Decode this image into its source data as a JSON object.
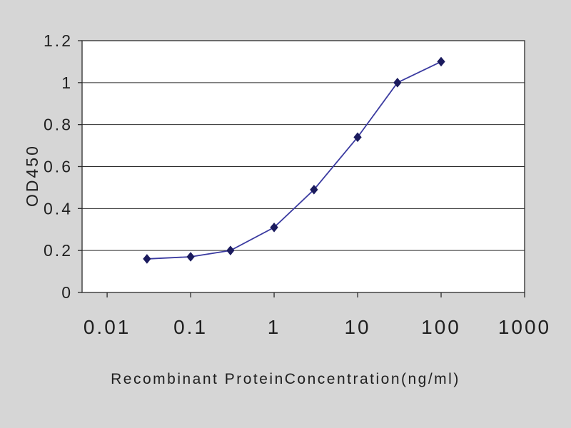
{
  "chart_data": {
    "type": "line",
    "title": "",
    "xlabel": "Recombinant ProteinConcentration(ng/ml)",
    "ylabel": "OD450",
    "x_scale": "log",
    "x": [
      0.03,
      0.1,
      0.3,
      1,
      3,
      10,
      30,
      100
    ],
    "y": [
      0.16,
      0.17,
      0.2,
      0.31,
      0.49,
      0.74,
      1.0,
      1.1
    ],
    "x_ticks": [
      0.01,
      0.1,
      1,
      10,
      100,
      1000
    ],
    "x_tick_labels": [
      "0.01",
      "0.1",
      "1",
      "10",
      "100",
      "1000"
    ],
    "y_ticks": [
      0,
      0.2,
      0.4,
      0.6,
      0.8,
      1,
      1.2
    ],
    "y_tick_labels": [
      "0",
      "0.2",
      "0.4",
      "0.6",
      "0.8",
      "1",
      "1.2"
    ],
    "xlim_log10": [
      -2.3,
      3.0
    ],
    "ylim": [
      0,
      1.2
    ],
    "grid": "horizontal",
    "legend": "none",
    "marker": "diamond",
    "line_color": "#3a3aa0",
    "marker_color": "#1b1b5e",
    "axis_color": "#2b2b2b",
    "text_color": "#1f1f1f",
    "plot_background": "#ffffff",
    "figure_background": "#d6d6d6"
  }
}
